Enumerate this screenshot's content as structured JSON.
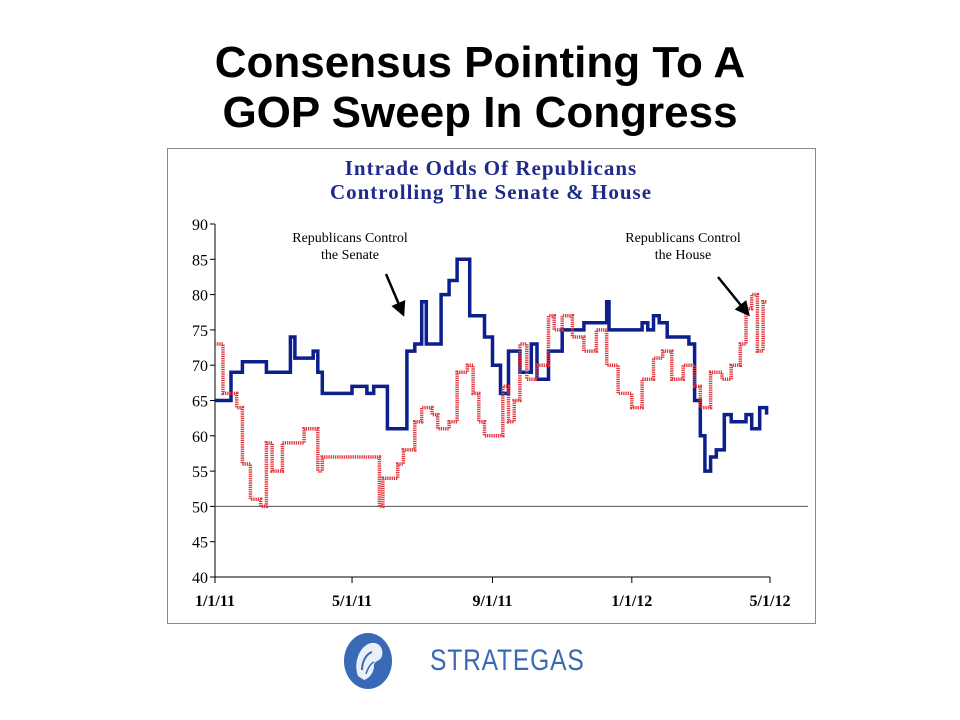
{
  "slide": {
    "title_line1": "Consensus Pointing To A",
    "title_line2": "GOP Sweep In Congress"
  },
  "logo": {
    "wordmark": "STRATEGAS",
    "icon": "helmeted-head-medallion-icon",
    "color": "#3a6ab5"
  },
  "chart_data": {
    "type": "line",
    "title": [
      "Intrade Odds Of Republicans",
      "Controlling The Senate & House"
    ],
    "title_color": "#1f2a8a",
    "xlabel": "",
    "ylabel": "",
    "x_ticks": [
      "1/1/11",
      "5/1/11",
      "9/1/11",
      "1/1/12",
      "5/1/12"
    ],
    "x_range": [
      "1/1/11",
      "5/1/12"
    ],
    "y_ticks": [
      40,
      45,
      50,
      55,
      60,
      65,
      70,
      75,
      80,
      85,
      90
    ],
    "ylim": [
      40,
      90
    ],
    "reference_line": 50,
    "grid": false,
    "legend": "none",
    "annotations": [
      {
        "line1": "Republicans Control",
        "line2": "the Senate",
        "points_to": "senate"
      },
      {
        "line1": "Republicans Control",
        "line2": "the House",
        "points_to": "house"
      }
    ],
    "series": [
      {
        "id": "senate",
        "color": "#0d1f8c",
        "style": "solid",
        "points": [
          [
            "1/1/11",
            65
          ],
          [
            "1/10/11",
            65
          ],
          [
            "1/15/11",
            69
          ],
          [
            "1/25/11",
            70.5
          ],
          [
            "2/10/11",
            70.5
          ],
          [
            "2/15/11",
            69
          ],
          [
            "3/5/11",
            69
          ],
          [
            "3/8/11",
            74
          ],
          [
            "3/12/11",
            71
          ],
          [
            "3/20/11",
            71
          ],
          [
            "3/28/11",
            72
          ],
          [
            "4/1/11",
            69
          ],
          [
            "4/5/11",
            66
          ],
          [
            "4/15/11",
            66
          ],
          [
            "4/30/11",
            66
          ],
          [
            "5/1/11",
            67
          ],
          [
            "5/10/11",
            67
          ],
          [
            "5/14/11",
            66
          ],
          [
            "5/20/11",
            67
          ],
          [
            "5/25/11",
            67
          ],
          [
            "6/1/11",
            61
          ],
          [
            "6/12/11",
            61
          ],
          [
            "6/18/11",
            72
          ],
          [
            "6/25/11",
            73
          ],
          [
            "7/1/11",
            79
          ],
          [
            "7/5/11",
            73
          ],
          [
            "7/15/11",
            73
          ],
          [
            "7/18/11",
            80
          ],
          [
            "7/25/11",
            82
          ],
          [
            "8/1/11",
            85
          ],
          [
            "8/8/11",
            85
          ],
          [
            "8/12/11",
            77
          ],
          [
            "8/20/11",
            77
          ],
          [
            "8/25/11",
            74
          ],
          [
            "9/1/11",
            70
          ],
          [
            "9/8/11",
            66
          ],
          [
            "9/15/11",
            72
          ],
          [
            "9/25/11",
            69
          ],
          [
            "10/5/11",
            73
          ],
          [
            "10/10/11",
            68
          ],
          [
            "10/20/11",
            72
          ],
          [
            "11/1/11",
            75
          ],
          [
            "11/15/11",
            75
          ],
          [
            "11/20/11",
            76
          ],
          [
            "12/1/11",
            76
          ],
          [
            "12/10/11",
            79
          ],
          [
            "12/12/11",
            75
          ],
          [
            "12/20/11",
            75
          ],
          [
            "1/1/12",
            75
          ],
          [
            "1/10/12",
            76
          ],
          [
            "1/15/12",
            75
          ],
          [
            "1/20/12",
            77
          ],
          [
            "1/25/12",
            76
          ],
          [
            "2/1/12",
            74
          ],
          [
            "2/10/12",
            74
          ],
          [
            "2/20/12",
            73
          ],
          [
            "2/25/12",
            65
          ],
          [
            "3/1/12",
            60
          ],
          [
            "3/5/12",
            55
          ],
          [
            "3/10/12",
            57
          ],
          [
            "3/15/12",
            58
          ],
          [
            "3/22/12",
            63
          ],
          [
            "3/28/12",
            62
          ],
          [
            "4/5/12",
            62
          ],
          [
            "4/10/12",
            63
          ],
          [
            "4/15/12",
            61
          ],
          [
            "4/22/12",
            64
          ],
          [
            "4/28/12",
            63
          ]
        ]
      },
      {
        "id": "house",
        "color": "#e0353b",
        "style": "dotted",
        "points": [
          [
            "1/1/11",
            73
          ],
          [
            "1/5/11",
            73
          ],
          [
            "1/8/11",
            66
          ],
          [
            "1/20/11",
            64
          ],
          [
            "1/25/11",
            56
          ],
          [
            "2/1/11",
            51
          ],
          [
            "2/10/11",
            50
          ],
          [
            "2/15/11",
            59
          ],
          [
            "2/20/11",
            55
          ],
          [
            "3/1/11",
            59
          ],
          [
            "3/15/11",
            59
          ],
          [
            "3/20/11",
            61
          ],
          [
            "3/28/11",
            61
          ],
          [
            "4/1/11",
            55
          ],
          [
            "4/5/11",
            57
          ],
          [
            "4/20/11",
            57
          ],
          [
            "5/1/11",
            57
          ],
          [
            "5/20/11",
            57
          ],
          [
            "5/25/11",
            50
          ],
          [
            "5/28/11",
            54
          ],
          [
            "6/5/11",
            54
          ],
          [
            "6/10/11",
            56
          ],
          [
            "6/15/11",
            58
          ],
          [
            "6/25/11",
            62
          ],
          [
            "7/1/11",
            64
          ],
          [
            "7/10/11",
            63
          ],
          [
            "7/15/11",
            61
          ],
          [
            "7/25/11",
            62
          ],
          [
            "8/1/11",
            69
          ],
          [
            "8/10/11",
            70
          ],
          [
            "8/15/11",
            66
          ],
          [
            "8/20/11",
            62
          ],
          [
            "8/25/11",
            60
          ],
          [
            "9/1/11",
            60
          ],
          [
            "9/10/11",
            67
          ],
          [
            "9/15/11",
            62
          ],
          [
            "9/20/11",
            65
          ],
          [
            "9/25/11",
            73
          ],
          [
            "10/1/11",
            68
          ],
          [
            "10/10/11",
            70
          ],
          [
            "10/20/11",
            77
          ],
          [
            "10/25/11",
            75
          ],
          [
            "11/1/11",
            77
          ],
          [
            "11/10/11",
            74
          ],
          [
            "11/20/11",
            72
          ],
          [
            "12/1/11",
            75
          ],
          [
            "12/10/11",
            70
          ],
          [
            "12/20/11",
            66
          ],
          [
            "1/1/12",
            64
          ],
          [
            "1/10/12",
            68
          ],
          [
            "1/20/12",
            71
          ],
          [
            "1/28/12",
            72
          ],
          [
            "2/5/12",
            68
          ],
          [
            "2/15/12",
            70
          ],
          [
            "2/25/12",
            67
          ],
          [
            "3/1/12",
            64
          ],
          [
            "3/10/12",
            69
          ],
          [
            "3/20/12",
            68
          ],
          [
            "3/28/12",
            70
          ],
          [
            "4/5/12",
            73
          ],
          [
            "4/10/12",
            78
          ],
          [
            "4/15/12",
            80
          ],
          [
            "4/20/12",
            72
          ],
          [
            "4/25/12",
            79
          ],
          [
            "4/28/12",
            79
          ]
        ]
      }
    ]
  }
}
